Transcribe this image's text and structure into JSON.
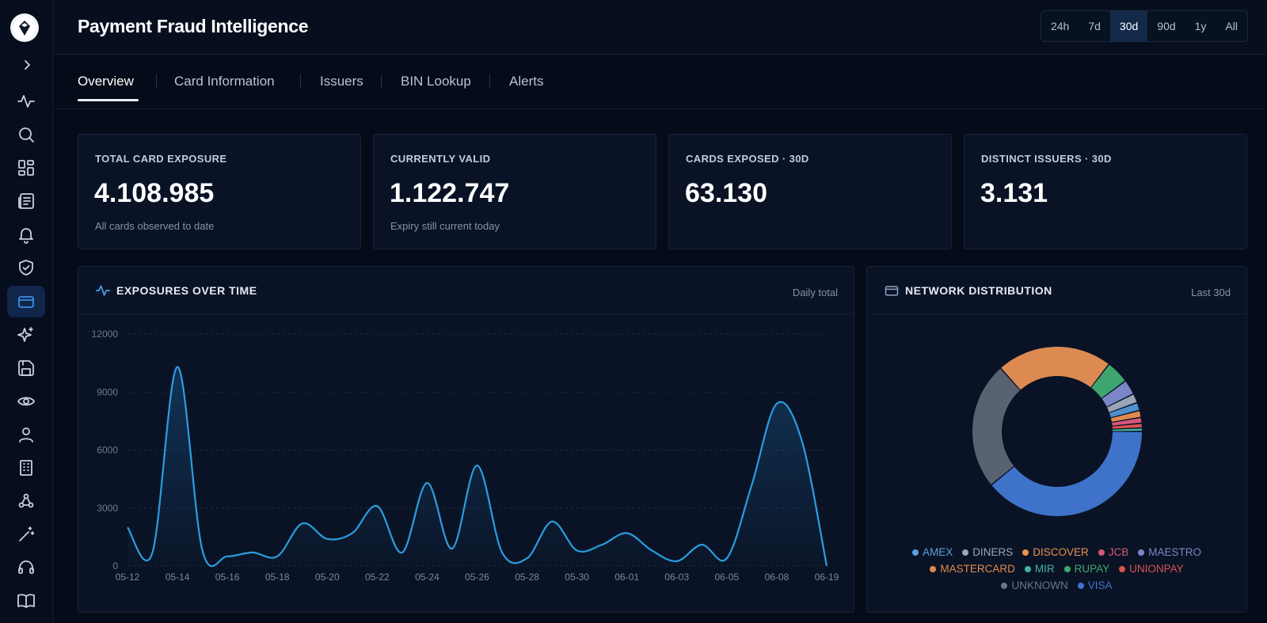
{
  "header": {
    "title": "Payment Fraud Intelligence"
  },
  "time_range": {
    "options": [
      "24h",
      "7d",
      "30d",
      "90d",
      "1y",
      "All"
    ],
    "selected": "30d"
  },
  "tabs": [
    {
      "label": "Overview",
      "active": true
    },
    {
      "label": "Card Information",
      "active": false
    },
    {
      "label": "Issuers",
      "active": false
    },
    {
      "label": "BIN Lookup",
      "active": false
    },
    {
      "label": "Alerts",
      "active": false
    }
  ],
  "sidebar": {
    "items": [
      "activity-icon",
      "search-icon",
      "dashboard-icon",
      "newspaper-icon",
      "bell-icon",
      "shield-icon",
      "credit-card-icon",
      "sparkles-icon",
      "save-icon",
      "eye-icon",
      "user-icon",
      "building-icon",
      "webhook-icon",
      "magic-wand-icon",
      "headset-icon",
      "book-icon"
    ],
    "active": "credit-card-icon"
  },
  "kpis": [
    {
      "label": "TOTAL CARD EXPOSURE",
      "value": "4.108.985",
      "sub": "All cards observed to date"
    },
    {
      "label": "CURRENTLY VALID",
      "value": "1.122.747",
      "sub": "Expiry still current today"
    },
    {
      "label": "CARDS EXPOSED · 30D",
      "value": "63.130",
      "sub": ""
    },
    {
      "label": "DISTINCT ISSUERS · 30D",
      "value": "3.131",
      "sub": ""
    }
  ],
  "exposures_panel": {
    "title": "EXPOSURES OVER TIME",
    "note": "Daily total"
  },
  "network_panel": {
    "title": "NETWORK DISTRIBUTION",
    "note": "Last 30d"
  },
  "colors": {
    "accent": "#2a9ee0",
    "background": "#050b18",
    "card": "#0a1325"
  },
  "chart_data": [
    {
      "type": "area",
      "title": "EXPOSURES OVER TIME",
      "xlabel": "",
      "ylabel": "",
      "ylim": [
        0,
        12000
      ],
      "yticks": [
        0,
        3000,
        6000,
        9000,
        12000
      ],
      "x_tick_labels": [
        "05-12",
        "05-14",
        "05-16",
        "05-18",
        "05-20",
        "05-22",
        "05-24",
        "05-26",
        "05-28",
        "05-30",
        "06-01",
        "06-03",
        "06-05",
        "06-08",
        "06-19"
      ],
      "grid": true,
      "series": [
        {
          "values": [
            2000,
            700,
            10300,
            800,
            500,
            700,
            500,
            2200,
            1400,
            1700,
            3100,
            700,
            4300,
            900,
            5200,
            700,
            400,
            2300,
            800,
            1100,
            1700,
            800,
            250,
            1100,
            400,
            4200,
            8400,
            6500,
            0
          ]
        }
      ]
    },
    {
      "type": "pie",
      "title": "NETWORK DISTRIBUTION",
      "labels": [
        "VISA",
        "UNKNOWN",
        "MASTERCARD",
        "RUPAY",
        "MAESTRO",
        "DINERS",
        "AMEX",
        "DISCOVER",
        "JCB",
        "UNIONPAY",
        "MIR"
      ],
      "values": [
        35.5,
        22,
        20,
        4,
        2.6,
        1.6,
        1.4,
        1.2,
        1,
        0.8,
        0.6
      ],
      "colors": [
        "#3f73c9",
        "#596270",
        "#dc8a52",
        "#3fa56e",
        "#7b86c8",
        "#9aa6b7",
        "#4f8fcc",
        "#e0894f",
        "#d4587a",
        "#d9534f",
        "#45b0a0"
      ],
      "legend": [
        [
          "AMEX",
          "DINERS",
          "DISCOVER",
          "JCB",
          "MAESTRO"
        ],
        [
          "MASTERCARD",
          "MIR",
          "RUPAY",
          "UNIONPAY"
        ],
        [
          "UNKNOWN",
          "VISA"
        ]
      ],
      "legend_colors": {
        "AMEX": "#5aa0dc",
        "DINERS": "#9aa6b7",
        "DISCOVER": "#e8934f",
        "JCB": "#d4587a",
        "MAESTRO": "#7b86c8",
        "MASTERCARD": "#e0894f",
        "MIR": "#45b0a0",
        "RUPAY": "#3fa56e",
        "UNIONPAY": "#d9534f",
        "UNKNOWN": "#6b7585",
        "VISA": "#3f73c9"
      },
      "legend_position": "bottom"
    }
  ]
}
